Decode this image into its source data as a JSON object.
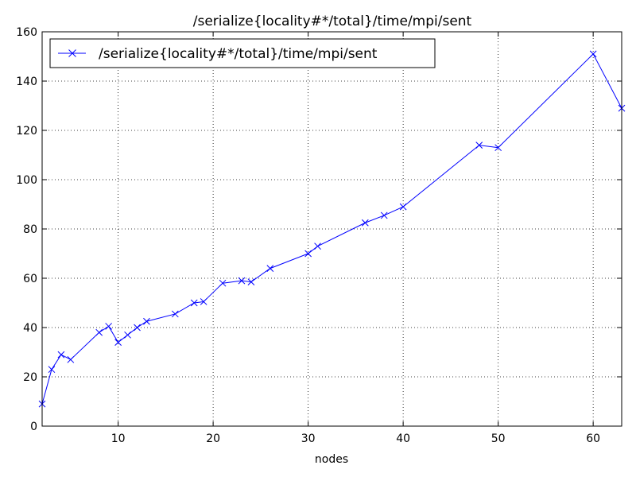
{
  "chart_data": {
    "type": "line",
    "title": "/serialize{locality#*/total}/time/mpi/sent",
    "xlabel": "nodes",
    "ylabel": "",
    "xlim": [
      2,
      63
    ],
    "ylim": [
      0,
      160
    ],
    "xticks": [
      10,
      20,
      30,
      40,
      50,
      60
    ],
    "yticks": [
      0,
      20,
      40,
      60,
      80,
      100,
      120,
      140,
      160
    ],
    "grid": true,
    "legend_position": "top-left",
    "series": [
      {
        "name": "/serialize{locality#*/total}/time/mpi/sent",
        "color": "#0000ff",
        "marker": "x",
        "x": [
          2,
          3,
          4,
          5,
          8,
          9,
          10,
          11,
          12,
          13,
          16,
          18,
          19,
          21,
          23,
          24,
          26,
          30,
          31,
          36,
          38,
          40,
          48,
          50,
          60,
          63
        ],
        "y": [
          9,
          23,
          29,
          27,
          38,
          40.5,
          34,
          37,
          40,
          42.5,
          45.5,
          50,
          50.5,
          58,
          59,
          58.5,
          64,
          70,
          73,
          82.5,
          85.5,
          89,
          114,
          113,
          151,
          129
        ]
      }
    ]
  }
}
